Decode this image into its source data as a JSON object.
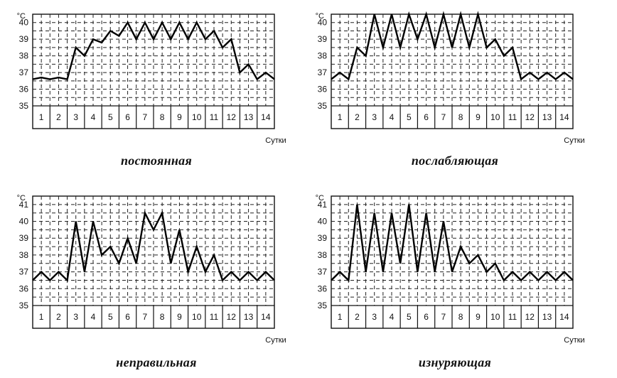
{
  "chart_data": [
    {
      "type": "line",
      "title": "постоянная",
      "unit_label": "°C",
      "xlabel": "Сутки",
      "categories": [
        "1",
        "2",
        "3",
        "4",
        "5",
        "6",
        "7",
        "8",
        "9",
        "10",
        "11",
        "12",
        "13",
        "14"
      ],
      "y_ticks": [
        "35",
        "36",
        "37",
        "38",
        "39",
        "40"
      ],
      "ylim": [
        35,
        40.5
      ],
      "grid": true,
      "points": [
        [
          0,
          36.6
        ],
        [
          0.5,
          36.7
        ],
        [
          1,
          36.6
        ],
        [
          1.5,
          36.7
        ],
        [
          2,
          36.6
        ],
        [
          2.5,
          38.5
        ],
        [
          3,
          38.0
        ],
        [
          3.5,
          39.0
        ],
        [
          4,
          38.8
        ],
        [
          4.5,
          39.5
        ],
        [
          5,
          39.2
        ],
        [
          5.5,
          40.0
        ],
        [
          6,
          39.0
        ],
        [
          6.5,
          40.0
        ],
        [
          7,
          39.0
        ],
        [
          7.5,
          40.0
        ],
        [
          8,
          39.0
        ],
        [
          8.5,
          40.0
        ],
        [
          9,
          39.0
        ],
        [
          9.5,
          40.0
        ],
        [
          10,
          39.0
        ],
        [
          10.5,
          39.5
        ],
        [
          11,
          38.5
        ],
        [
          11.5,
          39.0
        ],
        [
          12,
          37.0
        ],
        [
          12.5,
          37.5
        ],
        [
          13,
          36.6
        ],
        [
          13.5,
          37.0
        ],
        [
          14,
          36.6
        ]
      ]
    },
    {
      "type": "line",
      "title": "послабляющая",
      "unit_label": "°C",
      "xlabel": "Сутки",
      "categories": [
        "1",
        "2",
        "3",
        "4",
        "5",
        "6",
        "7",
        "8",
        "9",
        "10",
        "11",
        "12",
        "13",
        "14"
      ],
      "y_ticks": [
        "35",
        "36",
        "37",
        "38",
        "39",
        "40"
      ],
      "ylim": [
        35,
        40.5
      ],
      "grid": true,
      "points": [
        [
          0,
          36.6
        ],
        [
          0.5,
          37.0
        ],
        [
          1,
          36.6
        ],
        [
          1.5,
          38.5
        ],
        [
          2,
          38.0
        ],
        [
          2.5,
          40.5
        ],
        [
          3,
          38.5
        ],
        [
          3.5,
          40.5
        ],
        [
          4,
          38.5
        ],
        [
          4.5,
          40.5
        ],
        [
          5,
          39.0
        ],
        [
          5.5,
          40.5
        ],
        [
          6,
          38.5
        ],
        [
          6.5,
          40.5
        ],
        [
          7,
          38.5
        ],
        [
          7.5,
          40.5
        ],
        [
          8,
          38.5
        ],
        [
          8.5,
          40.5
        ],
        [
          9,
          38.5
        ],
        [
          9.5,
          39.0
        ],
        [
          10,
          38.0
        ],
        [
          10.5,
          38.5
        ],
        [
          11,
          36.6
        ],
        [
          11.5,
          37.0
        ],
        [
          12,
          36.6
        ],
        [
          12.5,
          37.0
        ],
        [
          13,
          36.6
        ],
        [
          13.5,
          37.0
        ],
        [
          14,
          36.6
        ]
      ]
    },
    {
      "type": "line",
      "title": "неправильная",
      "unit_label": "°C",
      "xlabel": "Сутки",
      "categories": [
        "1",
        "2",
        "3",
        "4",
        "5",
        "6",
        "7",
        "8",
        "9",
        "10",
        "11",
        "12",
        "13",
        "14"
      ],
      "y_ticks": [
        "35",
        "36",
        "37",
        "38",
        "39",
        "40",
        "41"
      ],
      "ylim": [
        35,
        41.5
      ],
      "grid": true,
      "points": [
        [
          0,
          36.5
        ],
        [
          0.5,
          37.0
        ],
        [
          1,
          36.5
        ],
        [
          1.5,
          37.0
        ],
        [
          2,
          36.5
        ],
        [
          2.5,
          40.0
        ],
        [
          3,
          37.0
        ],
        [
          3.5,
          40.0
        ],
        [
          4,
          38.0
        ],
        [
          4.5,
          38.5
        ],
        [
          5,
          37.5
        ],
        [
          5.5,
          39.0
        ],
        [
          6,
          37.5
        ],
        [
          6.5,
          40.5
        ],
        [
          7,
          39.5
        ],
        [
          7.5,
          40.5
        ],
        [
          8,
          37.5
        ],
        [
          8.5,
          39.5
        ],
        [
          9,
          37.0
        ],
        [
          9.5,
          38.5
        ],
        [
          10,
          37.0
        ],
        [
          10.5,
          38.0
        ],
        [
          11,
          36.5
        ],
        [
          11.5,
          37.0
        ],
        [
          12,
          36.5
        ],
        [
          12.5,
          37.0
        ],
        [
          13,
          36.5
        ],
        [
          13.5,
          37.0
        ],
        [
          14,
          36.5
        ]
      ]
    },
    {
      "type": "line",
      "title": "изнуряющая",
      "unit_label": "°C",
      "xlabel": "Сутки",
      "categories": [
        "1",
        "2",
        "3",
        "4",
        "5",
        "6",
        "7",
        "8",
        "9",
        "10",
        "11",
        "12",
        "13",
        "14"
      ],
      "y_ticks": [
        "35",
        "36",
        "37",
        "38",
        "39",
        "40",
        "41"
      ],
      "ylim": [
        35,
        41.5
      ],
      "grid": true,
      "points": [
        [
          0,
          36.5
        ],
        [
          0.5,
          37.0
        ],
        [
          1,
          36.5
        ],
        [
          1.5,
          41.0
        ],
        [
          2,
          37.0
        ],
        [
          2.5,
          40.5
        ],
        [
          3,
          37.0
        ],
        [
          3.5,
          40.5
        ],
        [
          4,
          37.5
        ],
        [
          4.5,
          41.0
        ],
        [
          5,
          37.0
        ],
        [
          5.5,
          40.5
        ],
        [
          6,
          37.0
        ],
        [
          6.5,
          40.0
        ],
        [
          7,
          37.0
        ],
        [
          7.5,
          38.5
        ],
        [
          8,
          37.5
        ],
        [
          8.5,
          38.0
        ],
        [
          9,
          37.0
        ],
        [
          9.5,
          37.5
        ],
        [
          10,
          36.5
        ],
        [
          10.5,
          37.0
        ],
        [
          11,
          36.5
        ],
        [
          11.5,
          37.0
        ],
        [
          12,
          36.5
        ],
        [
          12.5,
          37.0
        ],
        [
          13,
          36.5
        ],
        [
          13.5,
          37.0
        ],
        [
          14,
          36.5
        ]
      ]
    }
  ]
}
